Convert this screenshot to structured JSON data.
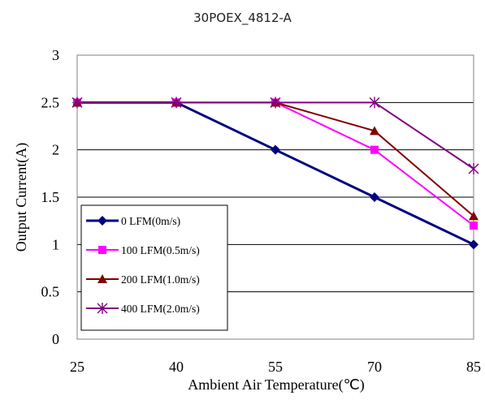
{
  "chart_data": {
    "type": "line",
    "title": "30POEX_4812-A",
    "xlabel": "Ambient Air Temperature(℃)",
    "ylabel": "Output Current(A)",
    "x": [
      25,
      40,
      55,
      70,
      85
    ],
    "x_tick_labels": [
      "25",
      "40",
      "55",
      "70",
      "85"
    ],
    "y_tick_labels": [
      "0",
      "0.5",
      "1",
      "1.5",
      "2",
      "2.5",
      "3"
    ],
    "xlim": [
      25,
      85
    ],
    "ylim": [
      0,
      3
    ],
    "grid": "horizontal",
    "legend_position": "bottom-left",
    "series": [
      {
        "name": "0 LFM(0m/s)",
        "values": [
          2.5,
          2.5,
          2.0,
          1.5,
          1.0
        ],
        "color": "#000080",
        "marker": "diamond"
      },
      {
        "name": "100 LFM(0.5m/s)",
        "values": [
          2.5,
          2.5,
          2.5,
          2.0,
          1.2
        ],
        "color": "#ff00ff",
        "marker": "square"
      },
      {
        "name": "200 LFM(1.0m/s)",
        "values": [
          2.5,
          2.5,
          2.5,
          2.2,
          1.3
        ],
        "color": "#800000",
        "marker": "triangle"
      },
      {
        "name": "400 LFM(2.0m/s)",
        "values": [
          2.5,
          2.5,
          2.5,
          2.5,
          1.8
        ],
        "color": "#800080",
        "marker": "star"
      }
    ]
  }
}
